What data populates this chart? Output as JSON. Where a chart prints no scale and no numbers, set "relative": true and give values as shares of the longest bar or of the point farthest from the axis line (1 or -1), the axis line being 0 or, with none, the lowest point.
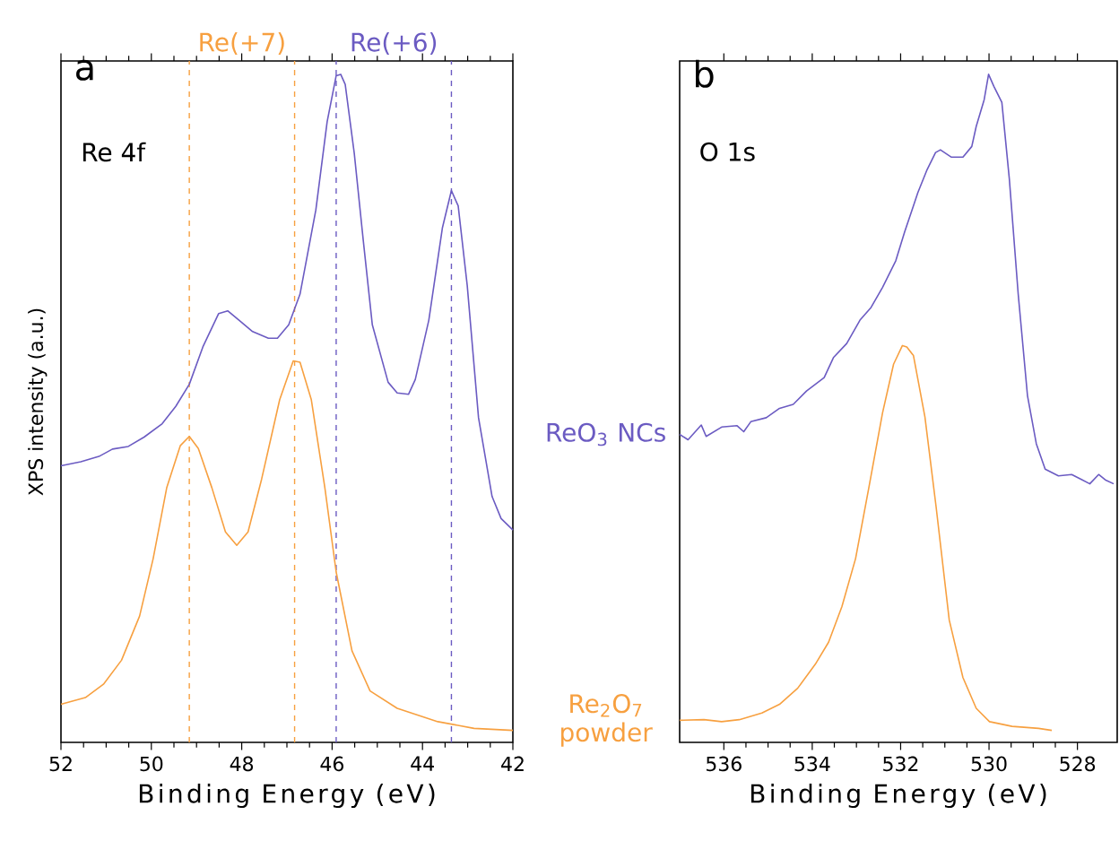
{
  "chart_data": [
    {
      "type": "line",
      "title": "a",
      "subtitle": "Re 4f",
      "xlabel": "Binding Energy (eV)",
      "ylabel": "XPS intensity (a.u.)",
      "relative": true,
      "xlim": [
        52,
        42
      ],
      "xticks": [
        52,
        50,
        48,
        46,
        44,
        42
      ],
      "series": [
        {
          "color": "#6b5bc2",
          "x": [
            52.0,
            51.56,
            51.16,
            50.86,
            50.51,
            50.16,
            49.76,
            49.46,
            49.16,
            48.86,
            48.51,
            48.31,
            48.06,
            47.76,
            47.41,
            47.21,
            46.96,
            46.71,
            46.36,
            46.11,
            45.91,
            45.81,
            45.71,
            45.51,
            45.31,
            45.11,
            44.76,
            44.56,
            44.31,
            44.16,
            43.86,
            43.56,
            43.36,
            43.21,
            43.01,
            42.76,
            42.46,
            42.26,
            42.0
          ],
          "values": [
            0.414,
            0.42,
            0.428,
            0.439,
            0.443,
            0.457,
            0.477,
            0.503,
            0.536,
            0.592,
            0.642,
            0.646,
            0.632,
            0.615,
            0.605,
            0.605,
            0.625,
            0.671,
            0.797,
            0.929,
            0.998,
            1.0,
            0.985,
            0.882,
            0.751,
            0.625,
            0.539,
            0.523,
            0.521,
            0.543,
            0.632,
            0.77,
            0.826,
            0.803,
            0.684,
            0.486,
            0.368,
            0.335,
            0.318
          ]
        },
        {
          "color": "#f7a040",
          "x": [
            52.0,
            51.46,
            51.06,
            50.66,
            50.26,
            49.96,
            49.66,
            49.36,
            49.16,
            48.96,
            48.66,
            48.36,
            48.11,
            47.86,
            47.56,
            47.16,
            46.86,
            46.71,
            46.46,
            46.16,
            45.91,
            45.56,
            45.16,
            44.56,
            43.66,
            42.86,
            42.0
          ],
          "values": [
            0.057,
            0.067,
            0.087,
            0.123,
            0.189,
            0.275,
            0.381,
            0.444,
            0.458,
            0.44,
            0.381,
            0.315,
            0.295,
            0.315,
            0.394,
            0.513,
            0.571,
            0.569,
            0.513,
            0.381,
            0.255,
            0.137,
            0.077,
            0.051,
            0.031,
            0.021,
            0.018
          ]
        }
      ],
      "ref_lines": [
        {
          "axis": "x",
          "value": 49.16,
          "label": "Re(+7)",
          "color": "#f7a040",
          "line_style": "dashed"
        },
        {
          "axis": "x",
          "value": 46.83,
          "color": "#f7a040",
          "line_style": "dashed"
        },
        {
          "axis": "x",
          "value": 45.91,
          "label": "Re(+6)",
          "color": "#6b5bc2",
          "line_style": "dashed"
        },
        {
          "axis": "x",
          "value": 43.36,
          "color": "#6b5bc2",
          "line_style": "dashed"
        }
      ]
    },
    {
      "type": "line",
      "title": "b",
      "subtitle": "O 1s",
      "xlabel": "Binding Energy (eV)",
      "relative": true,
      "xlim": [
        537,
        527.1
      ],
      "xticks": [
        536,
        534,
        532,
        530,
        528
      ],
      "series": [
        {
          "name": "ReO$_{3}$ NCs",
          "color": "#6b5bc2",
          "x": [
            537.0,
            536.81,
            536.51,
            536.4,
            536.05,
            535.7,
            535.55,
            535.39,
            535.04,
            534.74,
            534.43,
            534.13,
            533.73,
            533.52,
            533.22,
            532.92,
            532.67,
            532.41,
            532.11,
            531.91,
            531.61,
            531.41,
            531.21,
            531.1,
            530.85,
            530.59,
            530.39,
            530.29,
            530.11,
            530.01,
            529.89,
            529.71,
            529.54,
            529.34,
            529.13,
            528.93,
            528.73,
            528.43,
            528.13,
            527.92,
            527.72,
            527.52,
            527.37,
            527.18
          ],
          "values": [
            0.461,
            0.453,
            0.475,
            0.458,
            0.472,
            0.474,
            0.465,
            0.48,
            0.486,
            0.5,
            0.506,
            0.526,
            0.546,
            0.576,
            0.597,
            0.632,
            0.651,
            0.681,
            0.721,
            0.764,
            0.823,
            0.856,
            0.883,
            0.887,
            0.876,
            0.876,
            0.892,
            0.922,
            0.962,
            1.0,
            0.982,
            0.958,
            0.843,
            0.671,
            0.519,
            0.447,
            0.409,
            0.399,
            0.401,
            0.394,
            0.387,
            0.401,
            0.393,
            0.387
          ]
        },
        {
          "name": "Re$_{2}$O$_{7}$ powder",
          "color": "#f7a040",
          "x": [
            537.0,
            536.45,
            536.05,
            535.65,
            535.14,
            534.74,
            534.33,
            533.93,
            533.63,
            533.33,
            533.02,
            532.72,
            532.41,
            532.16,
            531.96,
            531.86,
            531.71,
            531.45,
            531.2,
            530.9,
            530.59,
            530.29,
            529.99,
            529.48,
            528.88,
            528.58
          ],
          "values": [
            0.033,
            0.034,
            0.031,
            0.034,
            0.044,
            0.057,
            0.081,
            0.117,
            0.15,
            0.203,
            0.275,
            0.381,
            0.493,
            0.566,
            0.594,
            0.592,
            0.579,
            0.487,
            0.354,
            0.183,
            0.097,
            0.051,
            0.031,
            0.024,
            0.021,
            0.018
          ]
        }
      ]
    }
  ]
}
